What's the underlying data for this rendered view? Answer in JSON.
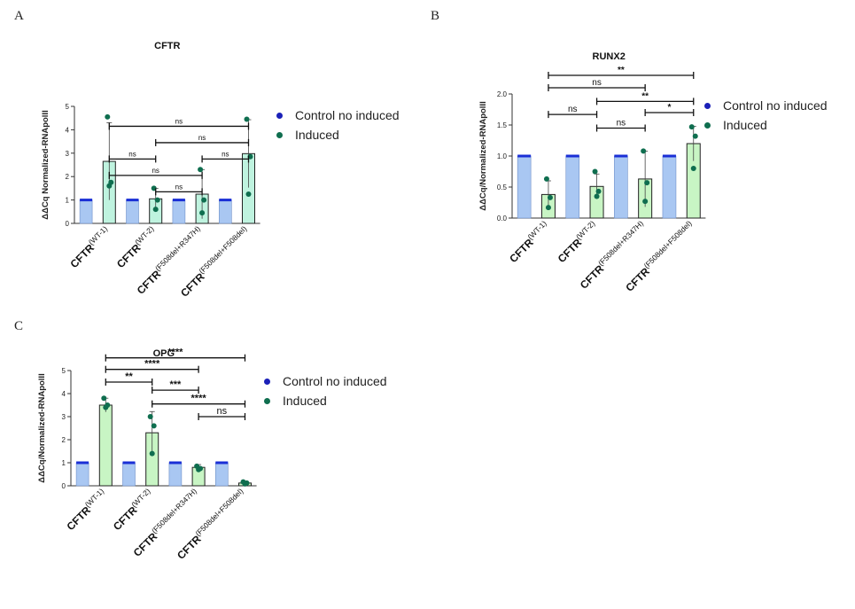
{
  "colors": {
    "control_bar": "#a9c7f2",
    "control_cap": "#1a2fd6",
    "induced_bar_A": "#bff3df",
    "induced_bar": "#c8f5c4",
    "induced_dot": "#0f6e4f",
    "legend_control": "#1b21b8",
    "legend_induced": "#0f6e4f",
    "axis": "#333333"
  },
  "panels": [
    {
      "letter": "A",
      "legend": [
        "Control no induced",
        "Induced"
      ]
    },
    {
      "letter": "B",
      "legend": [
        "Control no induced",
        "Induced"
      ]
    },
    {
      "letter": "C",
      "legend": [
        "Control no induced",
        "Induced"
      ]
    }
  ],
  "chart_data": [
    {
      "type": "bar",
      "title": "CFTR",
      "ylabel": "ΔΔCq Normalized-RNApolII",
      "ylim": [
        0,
        5
      ],
      "yticks": [
        "0",
        "1",
        "2",
        "3",
        "4",
        "5"
      ],
      "categories": [
        {
          "base": "CFTR",
          "sup": "(WT-1)"
        },
        {
          "base": "CFTR",
          "sup": "(WT-2)"
        },
        {
          "base": "CFTR",
          "sup": "(F508del+R347H)"
        },
        {
          "base": "CFTR",
          "sup": "(F508del+F508del)"
        }
      ],
      "series": [
        {
          "name": "Control no induced",
          "values": [
            1,
            1,
            1,
            1
          ]
        },
        {
          "name": "Induced",
          "values": [
            2.65,
            1.05,
            1.25,
            2.98
          ],
          "errors": [
            1.65,
            0.45,
            1.05,
            1.45
          ],
          "points": [
            [
              4.55,
              1.75,
              1.6
            ],
            [
              1.5,
              1.0,
              0.6
            ],
            [
              2.3,
              1.0,
              0.45
            ],
            [
              4.45,
              2.85,
              1.25
            ]
          ]
        }
      ],
      "comparisons": [
        {
          "from": 1,
          "to": 7,
          "label": "ns",
          "level": 4.15
        },
        {
          "from": 3,
          "to": 7,
          "label": "ns",
          "level": 3.45
        },
        {
          "from": 1,
          "to": 3,
          "label": "ns",
          "level": 2.75
        },
        {
          "from": 5,
          "to": 7,
          "label": "ns",
          "level": 2.75
        },
        {
          "from": 1,
          "to": 5,
          "label": "ns",
          "level": 2.05
        },
        {
          "from": 3,
          "to": 5,
          "label": "ns",
          "level": 1.35
        }
      ]
    },
    {
      "type": "bar",
      "title": "RUNX2",
      "ylabel": "ΔΔCq/Normalized-RNApolII",
      "ylim": [
        0,
        2.0
      ],
      "yticks": [
        "0.0",
        "0.5",
        "1.0",
        "1.5",
        "2.0"
      ],
      "categories": [
        {
          "base": "CFTR",
          "sup": "(WT-1)"
        },
        {
          "base": "CFTR",
          "sup": "(WT-2)"
        },
        {
          "base": "CFTR",
          "sup": "(F508del+R347H)"
        },
        {
          "base": "CFTR",
          "sup": "(F508del+F508del)"
        }
      ],
      "series": [
        {
          "name": "Control no induced",
          "values": [
            1.0,
            1.0,
            1.0,
            1.0
          ]
        },
        {
          "name": "Induced",
          "values": [
            0.38,
            0.51,
            0.63,
            1.2
          ],
          "errors": [
            0.22,
            0.2,
            0.45,
            0.28
          ],
          "points": [
            [
              0.63,
              0.33,
              0.17
            ],
            [
              0.75,
              0.43,
              0.35
            ],
            [
              1.08,
              0.57,
              0.27
            ],
            [
              1.47,
              1.32,
              0.8
            ]
          ]
        }
      ],
      "comparisons": [
        {
          "from": 1,
          "to": 7,
          "label": "**",
          "level": 2.3
        },
        {
          "from": 1,
          "to": 5,
          "label": "ns",
          "level": 2.1
        },
        {
          "from": 3,
          "to": 7,
          "label": "**",
          "level": 1.88
        },
        {
          "from": 5,
          "to": 7,
          "label": "*",
          "level": 1.7
        },
        {
          "from": 1,
          "to": 3,
          "label": "ns",
          "level": 1.67
        },
        {
          "from": 3,
          "to": 5,
          "label": "ns",
          "level": 1.45
        }
      ]
    },
    {
      "type": "bar",
      "title": "OPG",
      "ylabel": "ΔΔCq/Normalized-RNApolII",
      "ylim": [
        0,
        5
      ],
      "yticks": [
        "0",
        "1",
        "2",
        "3",
        "4",
        "5"
      ],
      "categories": [
        {
          "base": "CFTR",
          "sup": "(WT-1)"
        },
        {
          "base": "CFTR",
          "sup": "(WT-2)"
        },
        {
          "base": "CFTR",
          "sup": "(F508del+R347H)"
        },
        {
          "base": "CFTR",
          "sup": "(F508del+F508del)"
        }
      ],
      "series": [
        {
          "name": "Control no induced",
          "values": [
            1,
            1,
            1,
            1
          ]
        },
        {
          "name": "Induced",
          "values": [
            3.5,
            2.3,
            0.8,
            0.12
          ],
          "errors": [
            0.3,
            0.92,
            0.12,
            0.05
          ],
          "points": [
            [
              3.8,
              3.5,
              3.4
            ],
            [
              3.0,
              2.6,
              1.4
            ],
            [
              0.85,
              0.75,
              0.7
            ],
            [
              0.17,
              0.12,
              0.08
            ]
          ]
        }
      ],
      "comparisons": [
        {
          "from": 1,
          "to": 7,
          "label": "****",
          "level": 5.55
        },
        {
          "from": 1,
          "to": 5,
          "label": "****",
          "level": 5.05
        },
        {
          "from": 1,
          "to": 3,
          "label": "**",
          "level": 4.5
        },
        {
          "from": 3,
          "to": 5,
          "label": "***",
          "level": 4.15
        },
        {
          "from": 3,
          "to": 7,
          "label": "****",
          "level": 3.55
        },
        {
          "from": 5,
          "to": 7,
          "label": "ns",
          "level": 3.0
        }
      ]
    }
  ]
}
